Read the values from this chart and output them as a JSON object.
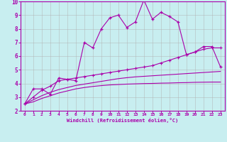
{
  "xlabel": "Windchill (Refroidissement éolien,°C)",
  "background_color": "#c8eef0",
  "grid_color": "#b0b0b0",
  "line_color": "#aa00aa",
  "xlim": [
    -0.5,
    23.5
  ],
  "ylim": [
    2,
    10
  ],
  "xticks": [
    0,
    1,
    2,
    3,
    4,
    5,
    6,
    7,
    8,
    9,
    10,
    11,
    12,
    13,
    14,
    15,
    16,
    17,
    18,
    19,
    20,
    21,
    22,
    23
  ],
  "yticks": [
    2,
    3,
    4,
    5,
    6,
    7,
    8,
    9,
    10
  ],
  "series1_x": [
    0,
    1,
    2,
    3,
    4,
    5,
    6,
    7,
    8,
    9,
    10,
    11,
    12,
    13,
    14,
    15,
    16,
    17,
    18,
    19,
    20,
    21,
    22,
    23
  ],
  "series1_y": [
    2.5,
    3.6,
    3.6,
    3.2,
    4.4,
    4.3,
    4.2,
    7.0,
    6.6,
    8.0,
    8.8,
    9.0,
    8.1,
    8.5,
    10.1,
    8.7,
    9.2,
    8.9,
    8.5,
    6.1,
    6.3,
    6.7,
    6.7,
    5.2
  ],
  "series2_x": [
    0,
    1,
    2,
    3,
    4,
    5,
    6,
    7,
    8,
    9,
    10,
    11,
    12,
    13,
    14,
    15,
    16,
    17,
    18,
    19,
    20,
    21,
    22,
    23
  ],
  "series2_y": [
    2.5,
    3.0,
    3.5,
    3.8,
    4.2,
    4.3,
    4.4,
    4.5,
    4.6,
    4.7,
    4.8,
    4.9,
    5.0,
    5.1,
    5.2,
    5.3,
    5.5,
    5.7,
    5.9,
    6.1,
    6.3,
    6.5,
    6.6,
    6.6
  ],
  "series3_x": [
    0,
    1,
    2,
    3,
    4,
    5,
    6,
    7,
    8,
    9,
    10,
    11,
    12,
    13,
    14,
    15,
    16,
    17,
    18,
    19,
    20,
    21,
    22,
    23
  ],
  "series3_y": [
    2.5,
    2.65,
    2.9,
    3.1,
    3.3,
    3.45,
    3.6,
    3.7,
    3.78,
    3.84,
    3.89,
    3.92,
    3.95,
    3.97,
    3.99,
    4.0,
    4.02,
    4.03,
    4.05,
    4.06,
    4.08,
    4.09,
    4.1,
    4.1
  ],
  "series4_x": [
    0,
    1,
    2,
    3,
    4,
    5,
    6,
    7,
    8,
    9,
    10,
    11,
    12,
    13,
    14,
    15,
    16,
    17,
    18,
    19,
    20,
    21,
    22,
    23
  ],
  "series4_y": [
    2.5,
    2.8,
    3.1,
    3.35,
    3.55,
    3.7,
    3.85,
    3.95,
    4.05,
    4.15,
    4.25,
    4.35,
    4.42,
    4.48,
    4.52,
    4.56,
    4.6,
    4.64,
    4.68,
    4.72,
    4.76,
    4.8,
    4.84,
    4.88
  ]
}
